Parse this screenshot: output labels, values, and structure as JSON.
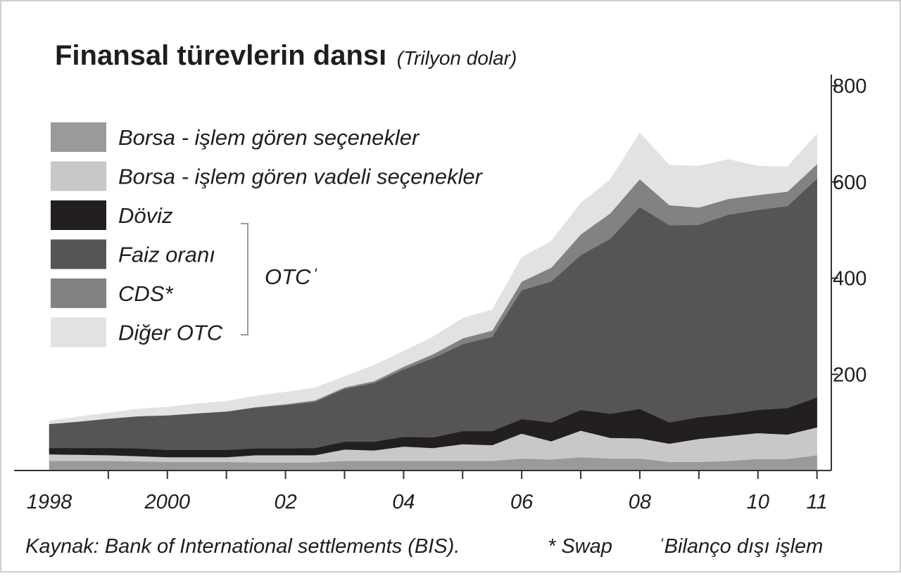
{
  "chart_data": {
    "type": "area",
    "stacked": true,
    "title": "Finansal türevlerin dansı",
    "subtitle": "(Trilyon dolar)",
    "x": [
      1998.0,
      1998.5,
      1999.0,
      1999.5,
      2000.0,
      2000.5,
      2001.0,
      2001.5,
      2002.0,
      2002.5,
      2003.0,
      2003.5,
      2004.0,
      2004.5,
      2005.0,
      2005.5,
      2006.0,
      2006.5,
      2007.0,
      2007.5,
      2008.0,
      2008.5,
      2009.0,
      2009.5,
      2010.0,
      2010.5,
      2011.0
    ],
    "x_tick_labels": [
      {
        "x": 1998,
        "label": "1998"
      },
      {
        "x": 2000,
        "label": "2000"
      },
      {
        "x": 2002,
        "label": "02"
      },
      {
        "x": 2004,
        "label": "04"
      },
      {
        "x": 2006,
        "label": "06"
      },
      {
        "x": 2008,
        "label": "08"
      },
      {
        "x": 2010,
        "label": "10"
      },
      {
        "x": 2011,
        "label": "11"
      }
    ],
    "x_minor_ticks": [
      1999,
      2000,
      2001,
      2002,
      2003,
      2004,
      2005,
      2006,
      2007,
      2008,
      2009,
      2010,
      2011
    ],
    "xlim": [
      1998.0,
      2011.1
    ],
    "ylim": [
      0,
      800
    ],
    "y_ticks": [
      {
        "value": 200,
        "label": "200"
      },
      {
        "value": 400,
        "label": "400"
      },
      {
        "value": 600,
        "label": "600"
      },
      {
        "value": 800,
        "label": "800"
      }
    ],
    "y_axis_position": "right",
    "grid": false,
    "legend_position": "top-left",
    "series": [
      {
        "name": "Borsa - işlem gören seçenekler",
        "color": "#9a9a9a",
        "values": [
          20,
          20,
          20,
          19,
          18,
          18,
          18,
          17,
          17,
          17,
          20,
          20,
          20,
          20,
          20,
          20,
          25,
          23,
          28,
          25,
          25,
          18,
          18,
          20,
          24,
          24,
          32
        ]
      },
      {
        "name": "Borsa - işlem gören vadeli seçenekler",
        "color": "#c8c8c8",
        "values": [
          14,
          13,
          12,
          11,
          10,
          10,
          10,
          15,
          15,
          15,
          24,
          22,
          30,
          27,
          35,
          33,
          52,
          38,
          55,
          43,
          42,
          38,
          48,
          52,
          54,
          51,
          58
        ]
      },
      {
        "name": "Döviz",
        "color": "#231f20",
        "values": [
          13,
          14,
          15,
          16,
          15,
          15,
          15,
          14,
          14,
          15,
          16,
          18,
          20,
          22,
          27,
          29,
          30,
          39,
          43,
          50,
          61,
          44,
          45,
          45,
          48,
          55,
          62
        ]
      },
      {
        "name": "Faiz oranı",
        "color": "#555555",
        "values": [
          50,
          55,
          61,
          67,
          72,
          76,
          80,
          85,
          90,
          96,
          110,
          122,
          140,
          165,
          181,
          196,
          268,
          293,
          322,
          364,
          420,
          410,
          400,
          415,
          416,
          420,
          455
        ]
      },
      {
        "name": "CDS*",
        "color": "#828282",
        "values": [
          0,
          0,
          0,
          0,
          0,
          0,
          0,
          1,
          2,
          3,
          3,
          4,
          6,
          8,
          12,
          13,
          18,
          29,
          43,
          53,
          58,
          42,
          36,
          33,
          31,
          30,
          30
        ]
      },
      {
        "name": "Diğer OTC",
        "color": "#e2e2e2",
        "values": [
          6,
          10,
          12,
          15,
          17,
          20,
          21,
          23,
          25,
          26,
          23,
          33,
          32,
          36,
          42,
          43,
          50,
          55,
          65,
          70,
          96,
          83,
          86,
          82,
          60,
          52,
          63
        ]
      }
    ],
    "legend": [
      {
        "label": "Borsa - işlem gören seçenekler",
        "color": "#9a9a9a"
      },
      {
        "label": "Borsa - işlem gören vadeli seçenekler",
        "color": "#c8c8c8"
      },
      {
        "label": "Döviz",
        "color": "#231f20"
      },
      {
        "label": "Faiz oranı",
        "color": "#555555"
      },
      {
        "label": "CDS*",
        "color": "#828282"
      },
      {
        "label": "Diğer OTC",
        "color": "#e2e2e2"
      }
    ],
    "otc_bracket_label": "OTCˈ",
    "footer": {
      "source": "Kaynak: Bank of International settlements (BIS).",
      "swap_note": "* Swap",
      "otc_note": "ˈBilanço dışı işlem"
    }
  }
}
